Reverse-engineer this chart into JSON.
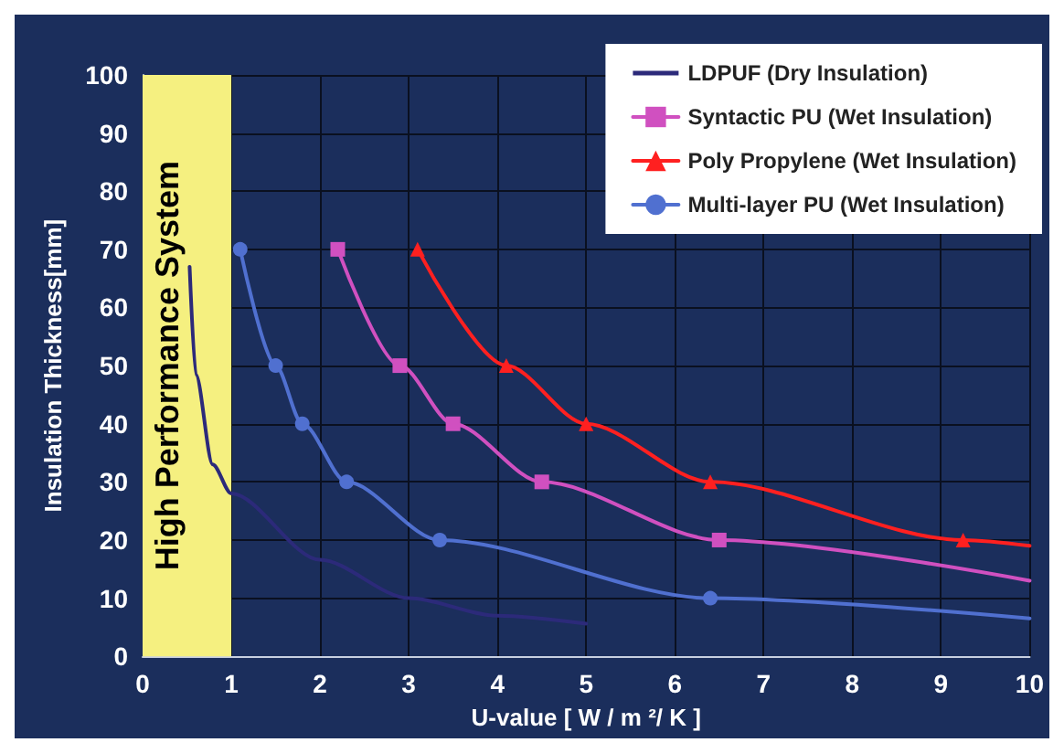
{
  "chart_data": {
    "type": "line",
    "xlabel": "U-value [ W / m ²/ K ]",
    "ylabel": "Insulation Thickness[mm]",
    "xlim": [
      0,
      10
    ],
    "xticks": [
      0,
      1,
      2,
      3,
      4,
      5,
      6,
      7,
      8,
      9,
      10
    ],
    "ylim": [
      0,
      100
    ],
    "yticks": [
      0,
      10,
      20,
      30,
      40,
      50,
      60,
      70,
      80,
      90,
      100
    ],
    "grid": true,
    "legend": "top right",
    "series": [
      {
        "name": "LDPUF (Dry Insulation)",
        "color": "#2c2a7a",
        "marker": "none",
        "x": [
          0.53,
          0.6,
          0.79,
          1,
          2,
          3,
          4,
          5
        ],
        "values": [
          67,
          48.5,
          33,
          28,
          16.6,
          10,
          7,
          5.6
        ]
      },
      {
        "name": "Syntactic PU (Wet Insulation)",
        "color": "#d050c0",
        "marker": "square",
        "x": [
          2.2,
          2.9,
          3.5,
          4.5,
          6.5,
          10
        ],
        "values": [
          70,
          50,
          40,
          30,
          20,
          13
        ]
      },
      {
        "name": "Poly Propylene (Wet Insulation)",
        "color": "#ff2020",
        "marker": "triangle",
        "x": [
          3.1,
          4.1,
          5.0,
          6.4,
          9.25,
          10
        ],
        "values": [
          70,
          50,
          40,
          30,
          20,
          19
        ]
      },
      {
        "name": "Multi-layer PU (Wet Insulation)",
        "color": "#5070d0",
        "marker": "circle",
        "x": [
          1.1,
          1.5,
          1.8,
          2.3,
          3.35,
          6.4,
          10
        ],
        "values": [
          70,
          50,
          40,
          30,
          20,
          10,
          6.5
        ]
      }
    ],
    "bands": [
      {
        "axis": "x",
        "from": 0,
        "to": 1,
        "label": "High Performance System",
        "color": "#f5f080"
      }
    ]
  }
}
